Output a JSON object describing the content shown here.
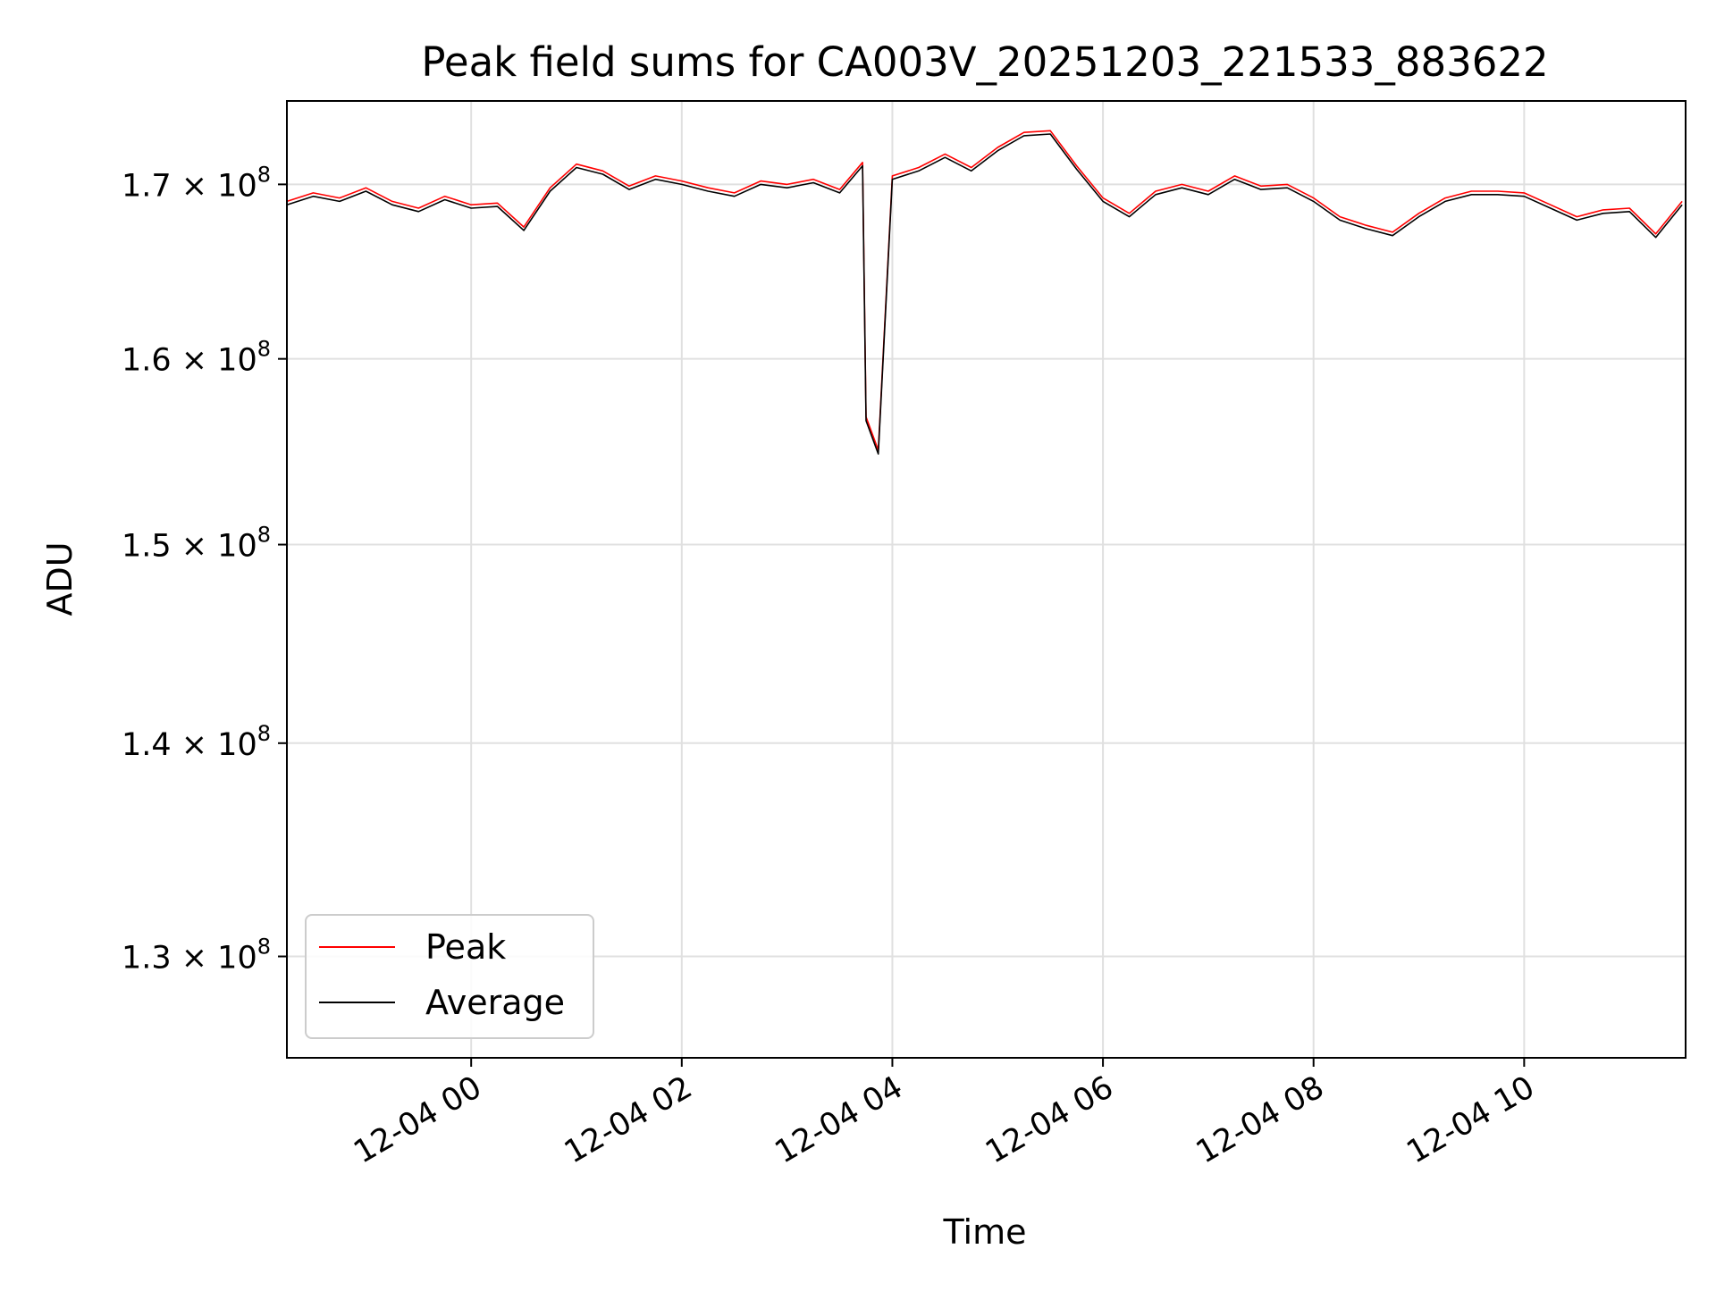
{
  "chart_data": {
    "type": "line",
    "title": "Peak field sums for CA003V_20251203_221533_883622",
    "xlabel": "Time",
    "ylabel": "ADU",
    "y_scale": "log",
    "xlim": [
      "2025-12-03 22:15",
      "2025-12-04 11:32"
    ],
    "ylim": [
      125500000,
      175000000
    ],
    "grid": true,
    "legend_position": "lower-left",
    "x_ticks": [
      "12-04 00",
      "12-04 02",
      "12-04 04",
      "12-04 06",
      "12-04 08",
      "12-04 10"
    ],
    "y_ticks": [
      {
        "value": 130000000,
        "mantissa": "1.3",
        "exponent": "8"
      },
      {
        "value": 140000000,
        "mantissa": "1.4",
        "exponent": "8"
      },
      {
        "value": 150000000,
        "mantissa": "1.5",
        "exponent": "8"
      },
      {
        "value": 160000000,
        "mantissa": "1.6",
        "exponent": "8"
      },
      {
        "value": 170000000,
        "mantissa": "1.7",
        "exponent": "8"
      }
    ],
    "x": [
      "2025-12-03 22:15",
      "2025-12-03 22:30",
      "2025-12-03 22:45",
      "2025-12-03 23:00",
      "2025-12-03 23:15",
      "2025-12-03 23:30",
      "2025-12-03 23:45",
      "2025-12-04 00:00",
      "2025-12-04 00:15",
      "2025-12-04 00:30",
      "2025-12-04 00:45",
      "2025-12-04 01:00",
      "2025-12-04 01:15",
      "2025-12-04 01:30",
      "2025-12-04 01:45",
      "2025-12-04 02:00",
      "2025-12-04 02:15",
      "2025-12-04 02:30",
      "2025-12-04 02:45",
      "2025-12-04 03:00",
      "2025-12-04 03:15",
      "2025-12-04 03:30",
      "2025-12-04 03:43",
      "2025-12-04 03:45",
      "2025-12-04 03:52",
      "2025-12-04 04:00",
      "2025-12-04 04:15",
      "2025-12-04 04:30",
      "2025-12-04 04:45",
      "2025-12-04 05:00",
      "2025-12-04 05:15",
      "2025-12-04 05:30",
      "2025-12-04 05:45",
      "2025-12-04 06:00",
      "2025-12-04 06:15",
      "2025-12-04 06:30",
      "2025-12-04 06:45",
      "2025-12-04 07:00",
      "2025-12-04 07:15",
      "2025-12-04 07:30",
      "2025-12-04 07:45",
      "2025-12-04 08:00",
      "2025-12-04 08:15",
      "2025-12-04 08:30",
      "2025-12-04 08:45",
      "2025-12-04 09:00",
      "2025-12-04 09:15",
      "2025-12-04 09:30",
      "2025-12-04 09:45",
      "2025-12-04 10:00",
      "2025-12-04 10:15",
      "2025-12-04 10:30",
      "2025-12-04 10:45",
      "2025-12-04 11:00",
      "2025-12-04 11:15",
      "2025-12-04 11:30"
    ],
    "series": [
      {
        "name": "Peak",
        "color": "#ff0000",
        "values": [
          169000000,
          169500000,
          169200000,
          169800000,
          169000000,
          168600000,
          169300000,
          168800000,
          168900000,
          167500000,
          169800000,
          171200000,
          170800000,
          169900000,
          170500000,
          170200000,
          169800000,
          169500000,
          170200000,
          170000000,
          170300000,
          169700000,
          171300000,
          156800000,
          155000000,
          170500000,
          171000000,
          171800000,
          171000000,
          172200000,
          173100000,
          173200000,
          171100000,
          169200000,
          168300000,
          169600000,
          170000000,
          169600000,
          170500000,
          169900000,
          170000000,
          169200000,
          168100000,
          167600000,
          167200000,
          168300000,
          169200000,
          169600000,
          169600000,
          169500000,
          168800000,
          168100000,
          168500000,
          168600000,
          167100000,
          169000000
        ]
      },
      {
        "name": "Average",
        "color": "#000000",
        "values": [
          168800000,
          169300000,
          169000000,
          169600000,
          168800000,
          168400000,
          169100000,
          168600000,
          168700000,
          167300000,
          169600000,
          171000000,
          170600000,
          169700000,
          170300000,
          170000000,
          169600000,
          169300000,
          170000000,
          169800000,
          170100000,
          169500000,
          171100000,
          156600000,
          154800000,
          170300000,
          170800000,
          171600000,
          170800000,
          172000000,
          172900000,
          173000000,
          170900000,
          169000000,
          168100000,
          169400000,
          169800000,
          169400000,
          170300000,
          169700000,
          169800000,
          169000000,
          167900000,
          167400000,
          167000000,
          168100000,
          169000000,
          169400000,
          169400000,
          169300000,
          168600000,
          167900000,
          168300000,
          168400000,
          166900000,
          168800000
        ]
      }
    ]
  }
}
